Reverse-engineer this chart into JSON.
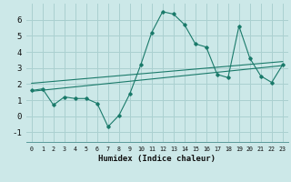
{
  "xlabel": "Humidex (Indice chaleur)",
  "bg_color": "#cce8e8",
  "grid_color": "#aad0d0",
  "line_color": "#1a7a6a",
  "xlim": [
    -0.5,
    23.5
  ],
  "ylim": [
    -1.6,
    7.0
  ],
  "xticks": [
    0,
    1,
    2,
    3,
    4,
    5,
    6,
    7,
    8,
    9,
    10,
    11,
    12,
    13,
    14,
    15,
    16,
    17,
    18,
    19,
    20,
    21,
    22,
    23
  ],
  "yticks": [
    -1,
    0,
    1,
    2,
    3,
    4,
    5,
    6
  ],
  "series1_x": [
    0,
    1,
    2,
    3,
    4,
    5,
    6,
    7,
    8,
    9,
    10,
    11,
    12,
    13,
    14,
    15,
    16,
    17,
    18,
    19,
    20,
    21,
    22,
    23
  ],
  "series1_y": [
    1.6,
    1.7,
    0.7,
    1.2,
    1.1,
    1.1,
    0.8,
    -0.65,
    0.05,
    1.4,
    3.2,
    5.2,
    6.5,
    6.35,
    5.7,
    4.5,
    4.3,
    2.6,
    2.4,
    5.6,
    3.6,
    2.5,
    2.1,
    3.2
  ],
  "series2_x": [
    0,
    23
  ],
  "series2_y": [
    1.55,
    3.15
  ],
  "series3_x": [
    0,
    23
  ],
  "series3_y": [
    2.05,
    3.4
  ]
}
